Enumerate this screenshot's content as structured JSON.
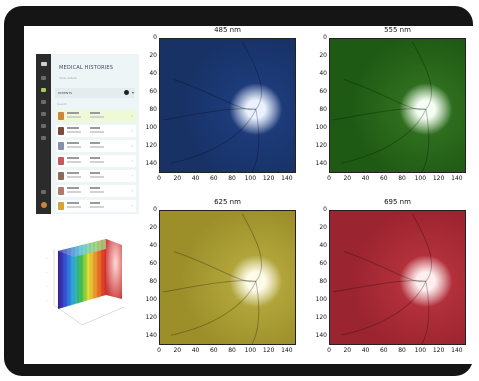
{
  "app": {
    "title": "MEDICAL HISTORIES",
    "subtitle": "View details",
    "section_label": "PATIENTS",
    "search_placeholder": "Search",
    "patient_rows": [
      {
        "avatar_color": "#c9863f",
        "selected": true
      },
      {
        "avatar_color": "#7a4a3a",
        "selected": false
      },
      {
        "avatar_color": "#8a8fa8",
        "selected": false
      },
      {
        "avatar_color": "#c65a5a",
        "selected": false
      },
      {
        "avatar_color": "#8a6a5a",
        "selected": false
      },
      {
        "avatar_color": "#b07a6a",
        "selected": false
      },
      {
        "avatar_color": "#d8a23a",
        "selected": false
      }
    ]
  },
  "panels": [
    {
      "title": "485 nm",
      "color": "#1d3b7a",
      "bg": "#183266",
      "highlight": "#e8f0ff"
    },
    {
      "title": "555 nm",
      "color": "#2f6e1e",
      "bg": "#1f5a14",
      "highlight": "#f2fff0"
    },
    {
      "title": "625 nm",
      "color": "#b0a43a",
      "bg": "#9c8f2a",
      "highlight": "#fffbe6"
    },
    {
      "title": "695 nm",
      "color": "#b2303a",
      "bg": "#9a2430",
      "highlight": "#ffecec"
    }
  ],
  "axes": {
    "y_ticks": [
      "0",
      "20",
      "40",
      "60",
      "80",
      "100",
      "120",
      "140"
    ],
    "x_ticks": [
      "0",
      "20",
      "40",
      "60",
      "80",
      "100",
      "120",
      "140"
    ]
  },
  "chart_data": [
    {
      "type": "heatmap",
      "title": "485 nm",
      "xlim": [
        0,
        150
      ],
      "ylim": [
        150,
        0
      ],
      "x_ticks": [
        0,
        20,
        40,
        60,
        80,
        100,
        120,
        140
      ],
      "y_ticks": [
        0,
        20,
        40,
        60,
        80,
        100,
        120,
        140
      ]
    },
    {
      "type": "heatmap",
      "title": "555 nm",
      "xlim": [
        0,
        150
      ],
      "ylim": [
        150,
        0
      ],
      "x_ticks": [
        0,
        20,
        40,
        60,
        80,
        100,
        120,
        140
      ],
      "y_ticks": [
        0,
        20,
        40,
        60,
        80,
        100,
        120,
        140
      ]
    },
    {
      "type": "heatmap",
      "title": "625 nm",
      "xlim": [
        0,
        150
      ],
      "ylim": [
        150,
        0
      ],
      "x_ticks": [
        0,
        20,
        40,
        60,
        80,
        100,
        120,
        140
      ],
      "y_ticks": [
        0,
        20,
        40,
        60,
        80,
        100,
        120,
        140
      ]
    },
    {
      "type": "heatmap",
      "title": "695 nm",
      "xlim": [
        0,
        150
      ],
      "ylim": [
        150,
        0
      ],
      "x_ticks": [
        0,
        20,
        40,
        60,
        80,
        100,
        120,
        140
      ],
      "y_ticks": [
        0,
        20,
        40,
        60,
        80,
        100,
        120,
        140
      ]
    }
  ]
}
